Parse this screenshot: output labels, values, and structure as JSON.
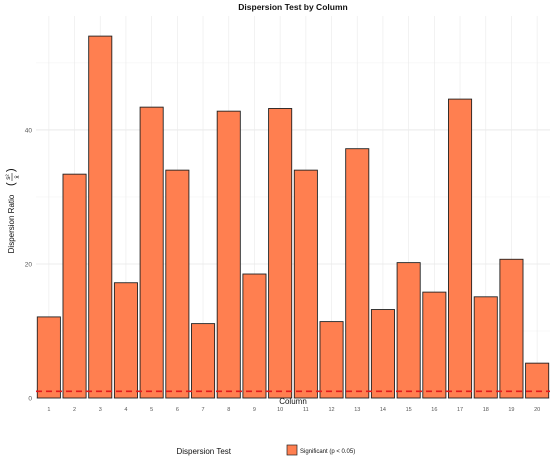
{
  "chart_data": {
    "type": "bar",
    "title": "Dispersion Test by Column",
    "xlabel": "Column",
    "ylabel": "Dispersion Ratio",
    "ylabel_formula": {
      "numerator": "s²",
      "denominator": "x̄"
    },
    "categories": [
      "1",
      "2",
      "3",
      "4",
      "5",
      "6",
      "7",
      "8",
      "9",
      "10",
      "11",
      "12",
      "13",
      "14",
      "15",
      "16",
      "17",
      "18",
      "19",
      "20"
    ],
    "values": [
      12.1,
      33.4,
      54.0,
      17.2,
      43.4,
      34.0,
      11.1,
      42.8,
      18.5,
      43.2,
      34.0,
      11.4,
      37.2,
      13.2,
      20.2,
      15.8,
      44.6,
      15.1,
      20.7,
      5.2
    ],
    "ylim": [
      0,
      57
    ],
    "yticks": [
      0,
      20,
      40
    ],
    "reference_line": {
      "y": 1,
      "color": "#e41a1c",
      "style": "dashed"
    },
    "grid": true,
    "bar_color": "#ff7f50",
    "bar_edge": "#222222",
    "legend": {
      "title": "Dispersion Test",
      "position": "bottom",
      "entries": [
        {
          "label": "Significant (p < 0.05)",
          "color": "#ff7f50"
        }
      ]
    }
  }
}
